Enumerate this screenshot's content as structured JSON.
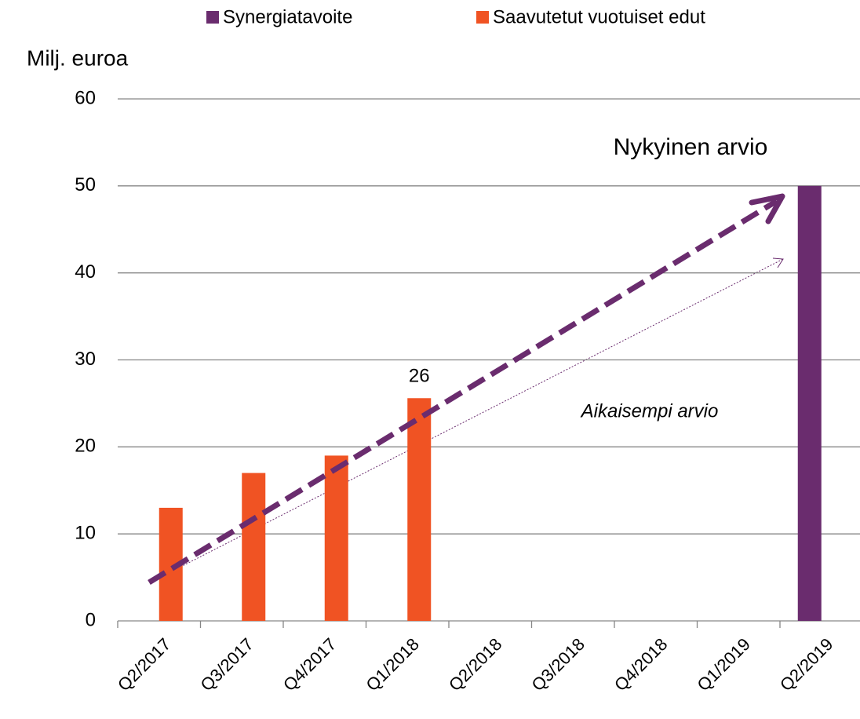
{
  "chart_data": {
    "type": "bar",
    "y_axis_label": "Milj. euroa",
    "categories": [
      "Q2/2017",
      "Q3/2017",
      "Q4/2017",
      "Q1/2018",
      "Q2/2018",
      "Q3/2018",
      "Q4/2018",
      "Q1/2019",
      "Q2/2019"
    ],
    "series": [
      {
        "name": "Synergiatavoite",
        "color": "#6a2c6e",
        "values": [
          null,
          null,
          null,
          null,
          null,
          null,
          null,
          null,
          50
        ]
      },
      {
        "name": "Saavutetut vuotuiset edut",
        "color": "#f05323",
        "values": [
          13,
          17,
          19,
          25.6,
          null,
          null,
          null,
          null,
          null
        ],
        "value_labels": [
          null,
          null,
          null,
          "26",
          null,
          null,
          null,
          null,
          null
        ]
      }
    ],
    "annotations": [
      "Nykyinen arvio",
      "Aikaisempi arvio"
    ],
    "ylim": [
      0,
      60
    ],
    "yticks": [
      0,
      10,
      20,
      30,
      40,
      50,
      60
    ],
    "grid": true
  }
}
